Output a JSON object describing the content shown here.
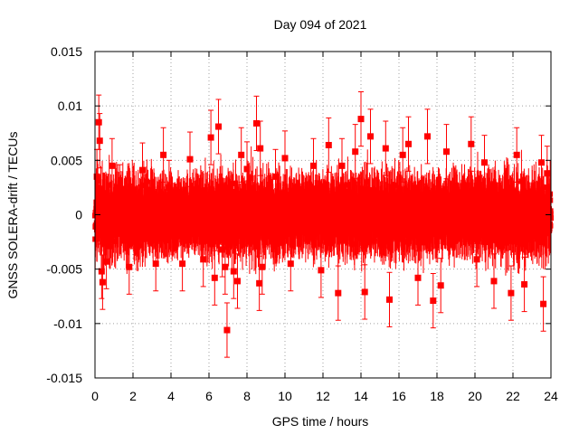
{
  "chart_data": {
    "type": "scatter",
    "title": "Day 094 of 2021",
    "xlabel": "GPS time / hours",
    "ylabel": "GNSS SOLERA-drift / TECUs",
    "xlim": [
      0,
      24
    ],
    "ylim": [
      -0.015,
      0.015
    ],
    "x_ticks": [
      0,
      2,
      4,
      6,
      8,
      10,
      12,
      14,
      16,
      18,
      20,
      22,
      24
    ],
    "y_ticks": [
      -0.015,
      -0.01,
      -0.005,
      0,
      0.005,
      0.01,
      0.015
    ],
    "x_tick_labels": [
      "0",
      "2",
      "4",
      "6",
      "8",
      "10",
      "12",
      "14",
      "16",
      "18",
      "20",
      "22",
      "24"
    ],
    "y_tick_labels": [
      "-0.015",
      "-0.01",
      "-0.005",
      "0",
      "0.005",
      "0.01",
      "0.015"
    ],
    "grid": true,
    "legend": "none",
    "marker": "filled-square",
    "error_bars": true,
    "series_color": "#ff0000",
    "sample_interval_hours": 0.00833,
    "typical_abs_error": 0.0025,
    "series": [
      {
        "x": [
          0.1,
          0.2,
          0.25,
          0.35,
          0.4,
          0.6,
          0.9,
          1.3,
          1.8,
          2.5,
          3.2,
          3.6,
          3.9,
          4.6,
          5.0,
          5.7,
          6.1,
          6.3,
          6.5,
          6.7,
          6.85,
          6.95,
          7.3,
          7.5,
          7.7,
          8.0,
          8.5,
          8.65,
          8.7,
          8.8,
          9.5,
          10.0,
          10.3,
          11.5,
          11.9,
          12.3,
          12.8,
          13.0,
          13.7,
          14.0,
          14.2,
          14.5,
          15.3,
          15.5,
          16.2,
          16.5,
          17.0,
          17.5,
          17.8,
          18.2,
          18.5,
          19.8,
          20.1,
          20.5,
          21.0,
          21.9,
          22.2,
          22.6,
          23.5,
          23.6,
          23.8
        ],
        "y": [
          0.0035,
          0.0085,
          0.0068,
          -0.0052,
          -0.0062,
          -0.0043,
          0.0045,
          0.0021,
          -0.0048,
          0.0041,
          -0.0045,
          0.0055,
          0.0025,
          -0.0045,
          0.0051,
          -0.0041,
          0.0071,
          -0.0058,
          0.0081,
          -0.0032,
          -0.0048,
          -0.0106,
          -0.0052,
          -0.0061,
          0.0055,
          0.0042,
          0.0084,
          -0.0063,
          0.0061,
          -0.0048,
          0.0035,
          0.0052,
          -0.0045,
          0.0045,
          -0.0051,
          0.0064,
          -0.0072,
          0.0045,
          0.0058,
          0.0088,
          -0.0071,
          0.0072,
          0.0061,
          -0.0078,
          0.0055,
          0.0065,
          -0.0058,
          0.0072,
          -0.0079,
          -0.0065,
          0.0058,
          0.0065,
          -0.0041,
          0.0048,
          -0.0061,
          -0.0072,
          0.0055,
          -0.0064,
          0.0048,
          -0.0082,
          0.0038
        ],
        "yerr": [
          0.0025,
          0.0025,
          0.0025,
          0.0025,
          0.0025,
          0.0025,
          0.0025,
          0.0025,
          0.0025,
          0.0025,
          0.0025,
          0.0025,
          0.0025,
          0.0025,
          0.0025,
          0.0025,
          0.0025,
          0.0025,
          0.0025,
          0.0025,
          0.0025,
          0.0025,
          0.0025,
          0.0025,
          0.0025,
          0.0025,
          0.0025,
          0.0025,
          0.0025,
          0.0025,
          0.0025,
          0.0025,
          0.0025,
          0.0025,
          0.0025,
          0.0025,
          0.0025,
          0.0025,
          0.0025,
          0.0025,
          0.0025,
          0.0025,
          0.0025,
          0.0025,
          0.0025,
          0.0025,
          0.0025,
          0.0025,
          0.0025,
          0.0025,
          0.0025,
          0.0025,
          0.0025,
          0.0025,
          0.0025,
          0.0025,
          0.0025,
          0.0025,
          0.0025,
          0.0025,
          0.0025
        ]
      }
    ]
  }
}
